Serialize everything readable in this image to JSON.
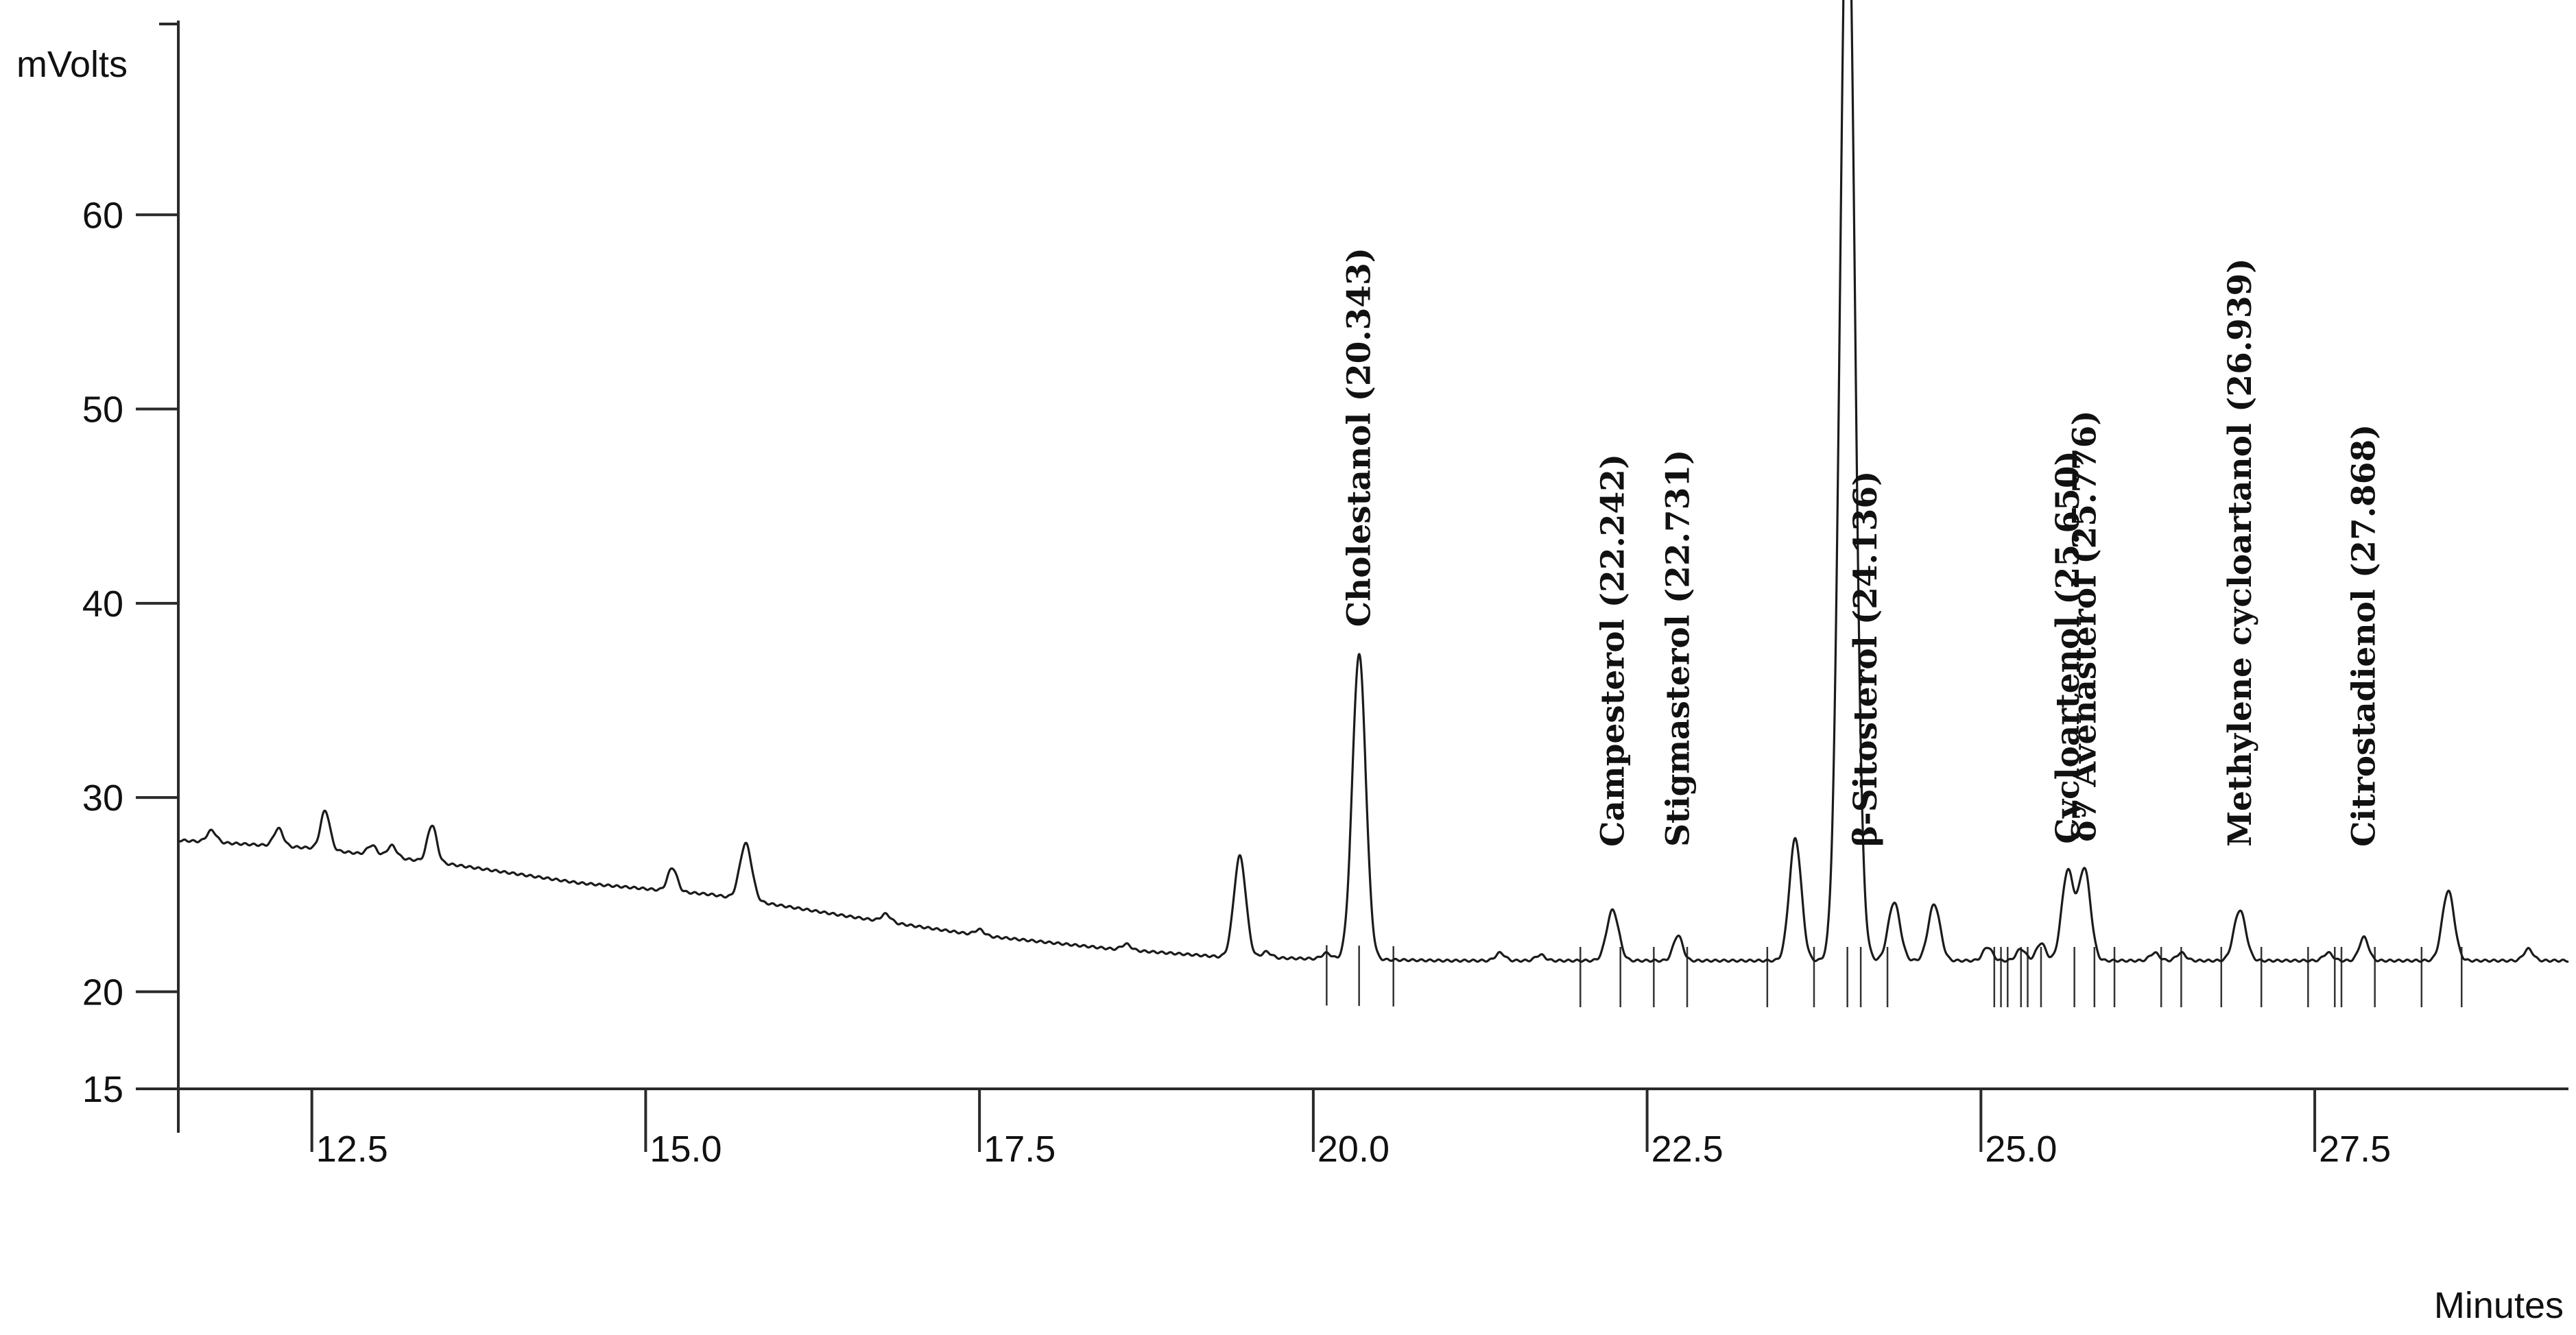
{
  "chart_data": {
    "type": "line",
    "title": "",
    "ylabel": "mVolts",
    "xlabel": "Minutes",
    "xlim": [
      11.5,
      29.4
    ],
    "ylim": [
      15,
      70
    ],
    "yticks": [
      15,
      20,
      30,
      40,
      50,
      60
    ],
    "ytick_labels": [
      "15",
      "20",
      "30",
      "40",
      "50",
      "60"
    ],
    "xticks": [
      12.5,
      15.0,
      17.5,
      20.0,
      22.5,
      25.0,
      27.5
    ],
    "xtick_labels": [
      "12.5",
      "15.0",
      "17.5",
      "20.0",
      "22.5",
      "25.0",
      "27.5"
    ],
    "baseline": [
      [
        11.5,
        27.8
      ],
      [
        12.5,
        27.4
      ],
      [
        13.5,
        26.6
      ],
      [
        14.5,
        25.6
      ],
      [
        15.5,
        25.0
      ],
      [
        16.5,
        23.9
      ],
      [
        17.5,
        22.9
      ],
      [
        18.5,
        22.2
      ],
      [
        19.3,
        21.8
      ],
      [
        20.0,
        21.7
      ],
      [
        21.0,
        21.6
      ],
      [
        29.4,
        21.6
      ]
    ],
    "peaks": [
      {
        "x": 11.75,
        "h": 0.6
      },
      {
        "x": 12.25,
        "h": 0.9
      },
      {
        "x": 12.6,
        "h": 2.0
      },
      {
        "x": 12.95,
        "h": 0.5
      },
      {
        "x": 13.1,
        "h": 0.6
      },
      {
        "x": 13.4,
        "h": 1.9
      },
      {
        "x": 15.2,
        "h": 1.2
      },
      {
        "x": 15.75,
        "h": 2.9
      },
      {
        "x": 16.8,
        "h": 0.4
      },
      {
        "x": 17.5,
        "h": 0.3
      },
      {
        "x": 18.6,
        "h": 0.3
      },
      {
        "x": 19.45,
        "h": 5.2
      },
      {
        "x": 19.65,
        "h": 0.3
      },
      {
        "x": 20.1,
        "h": 0.3
      },
      {
        "x": 20.343,
        "h": 15.7,
        "label": "Cholestanol (20.343)"
      },
      {
        "x": 21.4,
        "h": 0.4
      },
      {
        "x": 21.7,
        "h": 0.3
      },
      {
        "x": 22.242,
        "h": 2.6,
        "label": "Campesterol (22.242)"
      },
      {
        "x": 22.731,
        "h": 1.3,
        "label": "Stigmasterol (22.731)"
      },
      {
        "x": 23.61,
        "h": 6.3
      },
      {
        "x": 24.0,
        "h": 57.6
      },
      {
        "x": 24.136,
        "h": 0.3,
        "label": "β-Sitosterol (24.136)"
      },
      {
        "x": 24.35,
        "h": 3.0
      },
      {
        "x": 24.65,
        "h": 2.9
      },
      {
        "x": 25.05,
        "h": 0.7
      },
      {
        "x": 25.3,
        "h": 0.6
      },
      {
        "x": 25.45,
        "h": 0.9
      },
      {
        "x": 25.65,
        "h": 4.6,
        "label": "Cycloartenol (25.650)"
      },
      {
        "x": 25.776,
        "h": 4.7,
        "label": "δ7 Avenasterol (25.776)"
      },
      {
        "x": 26.3,
        "h": 0.4
      },
      {
        "x": 26.5,
        "h": 0.4
      },
      {
        "x": 26.939,
        "h": 2.6,
        "label": "Methylene cycloartanol (26.939)"
      },
      {
        "x": 27.6,
        "h": 0.4
      },
      {
        "x": 27.868,
        "h": 1.2,
        "label": "Citrostadienol (27.868)"
      },
      {
        "x": 28.5,
        "h": 3.6
      },
      {
        "x": 29.1,
        "h": 0.6
      }
    ],
    "markers": [
      20.1,
      20.343,
      20.6,
      22.0,
      22.3,
      22.55,
      22.8,
      23.4,
      23.75,
      24.0,
      24.1,
      24.3,
      25.1,
      25.15,
      25.2,
      25.3,
      25.35,
      25.45,
      25.7,
      25.85,
      26.0,
      26.35,
      26.5,
      26.8,
      27.1,
      27.45,
      27.65,
      27.7,
      27.95,
      28.3,
      28.6
    ]
  }
}
